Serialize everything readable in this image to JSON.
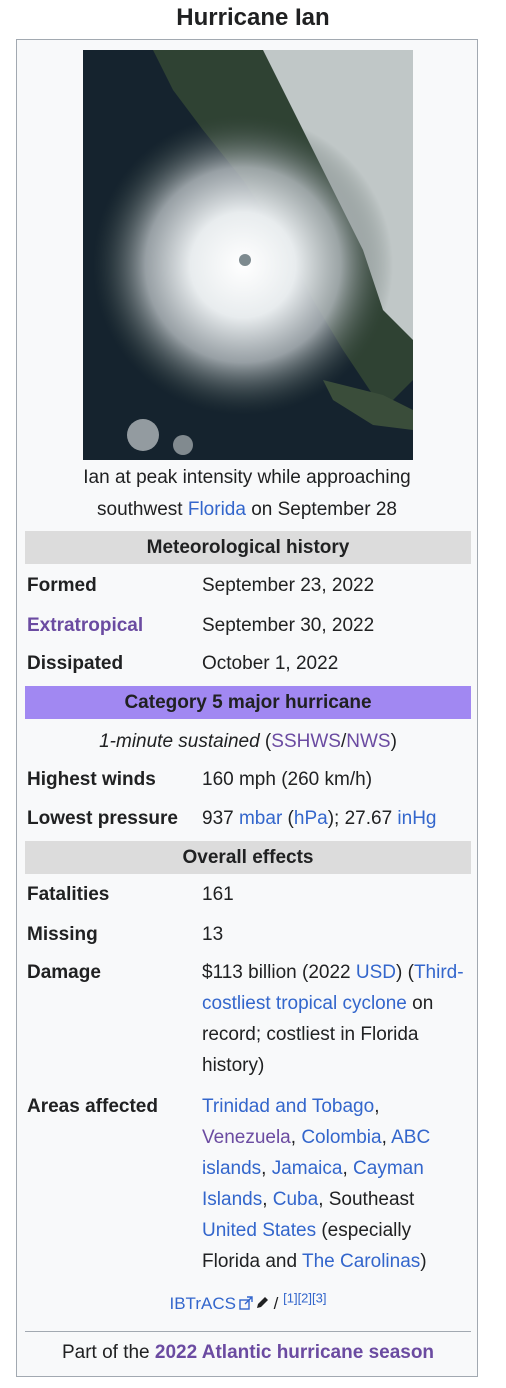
{
  "title": "Hurricane Ian",
  "caption": {
    "pre": "Ian at peak intensity while approaching southwest ",
    "link": "Florida",
    "post": " on September 28"
  },
  "sections": {
    "met_history": "Meteorological history",
    "category": "Category 5 major hurricane",
    "overall_effects": "Overall effects"
  },
  "colors": {
    "header_gray": "#dcdcdc",
    "category": "#a188f2",
    "link": "#3366cc",
    "visited": "#6b4ba1"
  },
  "met": {
    "formed_label": "Formed",
    "formed_value": "September 23, 2022",
    "extratropical_label": "Extratropical",
    "extratropical_value": "September 30, 2022",
    "dissipated_label": "Dissipated",
    "dissipated_value": "October 1, 2022"
  },
  "sustained": {
    "text": "1-minute sustained",
    "open": " (",
    "sshws": "SSHWS",
    "slash": "/",
    "nws": "NWS",
    "close": ")"
  },
  "winds": {
    "label": "Highest winds",
    "value": "160 mph (260 km/h)"
  },
  "pressure": {
    "label": "Lowest pressure",
    "p1": "937 ",
    "mbar": "mbar",
    "p2": " (",
    "hpa": "hPa",
    "p3": "); 27.67 ",
    "inhg": "inHg"
  },
  "effects": {
    "fatalities_label": "Fatalities",
    "fatalities_value": "161",
    "missing_label": "Missing",
    "missing_value": "13",
    "damage_label": "Damage",
    "damage_p1": "$113 billion (2022 ",
    "damage_usd": "USD",
    "damage_p2": ") (",
    "damage_link": "Third-costliest tropical cyclone",
    "damage_p3": " on record; costliest in Florida history)",
    "areas_label": "Areas affected",
    "areas": {
      "trinidad": "Trinidad and Tobago",
      "venezuela": "Venezuela",
      "colombia": "Colombia",
      "abc": "ABC islands",
      "jamaica": "Jamaica",
      "cayman": "Cayman Islands",
      "cuba": "Cuba",
      "southeast": "Southeast ",
      "us": "United States",
      "especially": " (especially Florida and ",
      "carolinas": "The Carolinas",
      "close": ")",
      "comma": ", "
    }
  },
  "ibtracs": {
    "label": "IBTrACS",
    "sep": " / ",
    "refs": "[1][2][3]",
    "external_icon": "external-link-icon",
    "edit_icon": "pencil-icon"
  },
  "footer": {
    "pre": "Part of the ",
    "link": "2022 Atlantic hurricane season"
  }
}
